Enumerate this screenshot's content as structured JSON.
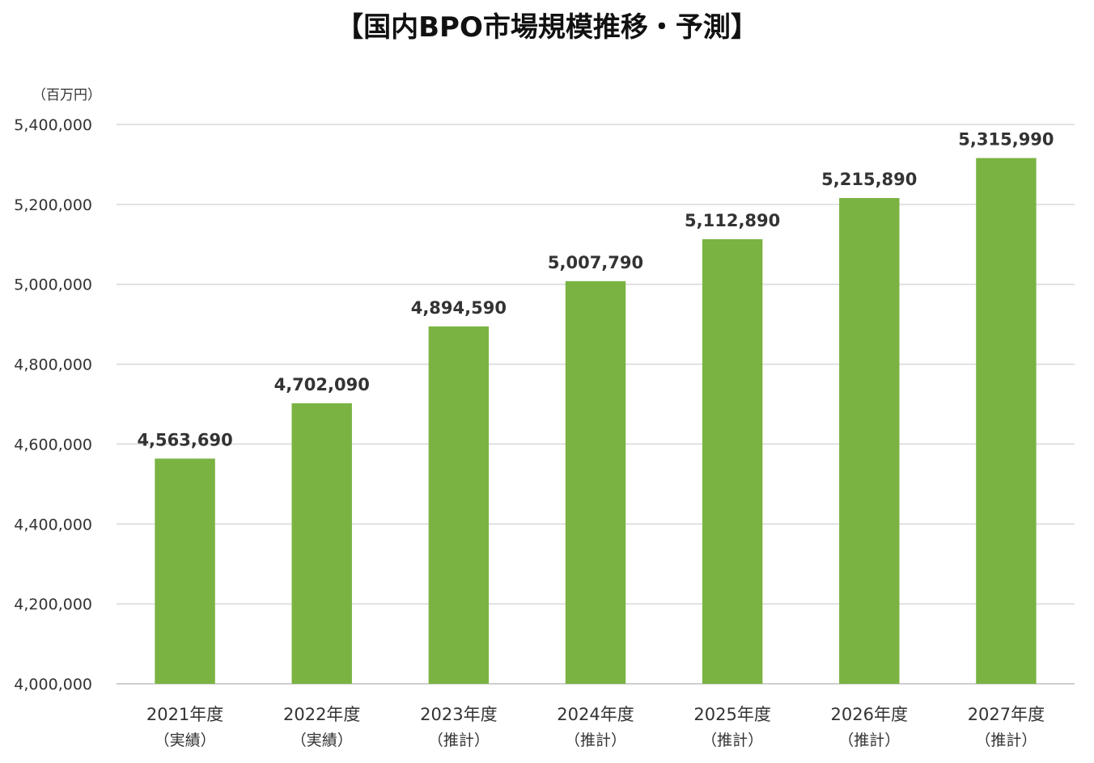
{
  "chart_data": {
    "type": "bar",
    "title": "【国内BPO市場規模推移・予測】",
    "unit_label": "（百万円）",
    "categories": [
      "2021年度",
      "2022年度",
      "2023年度",
      "2024年度",
      "2025年度",
      "2026年度",
      "2027年度"
    ],
    "category_notes": [
      "（実績）",
      "（実績）",
      "（推計）",
      "（推計）",
      "（推計）",
      "（推計）",
      "（推計）"
    ],
    "values": [
      4563690,
      4702090,
      4894590,
      5007790,
      5112890,
      5215890,
      5315990
    ],
    "value_labels": [
      "4,563,690",
      "4,702,090",
      "4,894,590",
      "5,007,790",
      "5,112,890",
      "5,215,890",
      "5,315,990"
    ],
    "ylim": [
      4000000,
      5400000
    ],
    "yticks": [
      4000000,
      4200000,
      4400000,
      4600000,
      4800000,
      5000000,
      5200000,
      5400000
    ],
    "ytick_labels": [
      "4,000,000",
      "4,200,000",
      "4,400,000",
      "4,600,000",
      "4,800,000",
      "5,000,000",
      "5,200,000",
      "5,400,000"
    ],
    "grid": true,
    "legend": "none",
    "bar_color": "#7ab342"
  }
}
